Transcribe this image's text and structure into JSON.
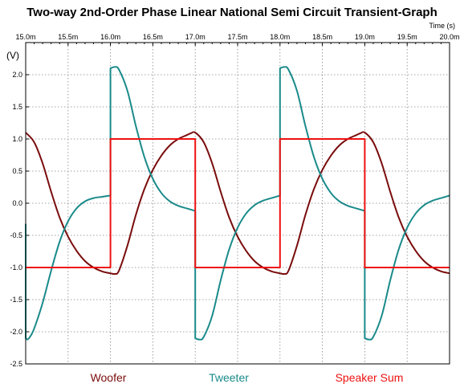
{
  "chart_data": {
    "type": "line",
    "title": "Two-way 2nd-Order  Phase Linear National Semi Circuit Transient-Graph",
    "xlabel": "Time  (s)",
    "ylabel": "(V)",
    "xlim": [
      15.0,
      20.0
    ],
    "ylim": [
      -2.5,
      2.5
    ],
    "x_unit": "ms",
    "x_ticks": [
      15.0,
      15.5,
      16.0,
      16.5,
      17.0,
      17.5,
      18.0,
      18.5,
      19.0,
      19.5,
      20.0
    ],
    "x_tick_labels": [
      "15.0m",
      "15.5m",
      "16.0m",
      "16.5m",
      "17.0m",
      "17.5m",
      "18.0m",
      "18.5m",
      "19.0m",
      "19.5m",
      "20.0m"
    ],
    "y_ticks": [
      2.0,
      1.5,
      1.0,
      0.5,
      0.0,
      -0.5,
      -1.0,
      -1.5,
      -2.0,
      -2.5
    ],
    "y_tick_labels": [
      "2.0",
      "1.5",
      "1.0",
      "0.5",
      "0.0",
      "-0.5",
      "-1.0",
      "-1.5",
      "-2.0",
      "-2.5"
    ],
    "grid": true,
    "x_axis_position": "top",
    "legend_position": "bottom",
    "series": [
      {
        "name": "Woofer",
        "color": "#7a0c0c",
        "x": [
          15.0,
          15.1,
          15.2,
          15.3,
          15.4,
          15.5,
          15.6,
          15.7,
          15.8,
          15.9,
          16.0,
          16.05,
          16.1,
          16.2,
          16.3,
          16.4,
          16.5,
          16.6,
          16.7,
          16.8,
          16.9,
          16.95,
          17.0,
          17.1,
          17.2,
          17.3,
          17.4,
          17.5,
          17.6,
          17.7,
          17.8,
          17.9,
          18.0,
          18.05,
          18.1,
          18.2,
          18.3,
          18.4,
          18.5,
          18.6,
          18.7,
          18.8,
          18.9,
          18.95,
          19.0,
          19.1,
          19.2,
          19.3,
          19.4,
          19.5,
          19.6,
          19.7,
          19.8,
          19.9,
          20.0
        ],
        "values": [
          1.1,
          0.95,
          0.62,
          0.18,
          -0.22,
          -0.52,
          -0.74,
          -0.9,
          -1.0,
          -1.06,
          -1.09,
          -1.1,
          -1.05,
          -0.66,
          -0.18,
          0.22,
          0.52,
          0.74,
          0.9,
          1.0,
          1.06,
          1.09,
          1.1,
          0.95,
          0.62,
          0.18,
          -0.22,
          -0.52,
          -0.74,
          -0.9,
          -1.0,
          -1.06,
          -1.09,
          -1.1,
          -1.05,
          -0.66,
          -0.18,
          0.22,
          0.52,
          0.74,
          0.9,
          1.0,
          1.06,
          1.09,
          1.1,
          0.95,
          0.62,
          0.18,
          -0.22,
          -0.52,
          -0.74,
          -0.9,
          -1.0,
          -1.06,
          -1.09
        ]
      },
      {
        "name": "Tweeter",
        "color": "#1a8a8a",
        "x": [
          15.0,
          15.0,
          15.02,
          15.05,
          15.1,
          15.2,
          15.3,
          15.4,
          15.5,
          15.6,
          15.7,
          15.8,
          15.9,
          16.0,
          16.0,
          16.05,
          16.1,
          16.2,
          16.3,
          16.4,
          16.5,
          16.6,
          16.7,
          16.8,
          16.9,
          17.0,
          17.0,
          17.05,
          17.1,
          17.2,
          17.3,
          17.4,
          17.5,
          17.6,
          17.7,
          17.8,
          17.9,
          18.0,
          18.0,
          18.05,
          18.1,
          18.2,
          18.3,
          18.4,
          18.5,
          18.6,
          18.7,
          18.8,
          18.9,
          19.0,
          19.0,
          19.05,
          19.1,
          19.2,
          19.3,
          19.4,
          19.5,
          19.6,
          19.7,
          19.8,
          19.9,
          20.0
        ],
        "values": [
          -0.32,
          -2.1,
          -2.12,
          -2.08,
          -1.95,
          -1.55,
          -1.05,
          -0.6,
          -0.28,
          -0.08,
          0.03,
          0.08,
          0.1,
          0.12,
          2.1,
          2.12,
          2.08,
          1.75,
          1.2,
          0.72,
          0.38,
          0.16,
          0.03,
          -0.04,
          -0.08,
          -0.12,
          -2.1,
          -2.12,
          -2.08,
          -1.75,
          -1.2,
          -0.72,
          -0.38,
          -0.16,
          -0.03,
          0.04,
          0.08,
          0.12,
          2.1,
          2.12,
          2.08,
          1.75,
          1.2,
          0.72,
          0.38,
          0.16,
          0.03,
          -0.04,
          -0.08,
          -0.12,
          -2.1,
          -2.12,
          -2.08,
          -1.75,
          -1.2,
          -0.72,
          -0.38,
          -0.16,
          -0.03,
          0.04,
          0.08,
          0.12
        ]
      },
      {
        "name": "Speaker Sum",
        "color": "#ee1111",
        "x": [
          15.0,
          16.0,
          16.0,
          17.0,
          17.0,
          18.0,
          18.0,
          19.0,
          19.0,
          20.0
        ],
        "values": [
          -1.0,
          -1.0,
          1.0,
          1.0,
          -1.0,
          -1.0,
          1.0,
          1.0,
          -1.0,
          -1.0
        ]
      }
    ]
  }
}
